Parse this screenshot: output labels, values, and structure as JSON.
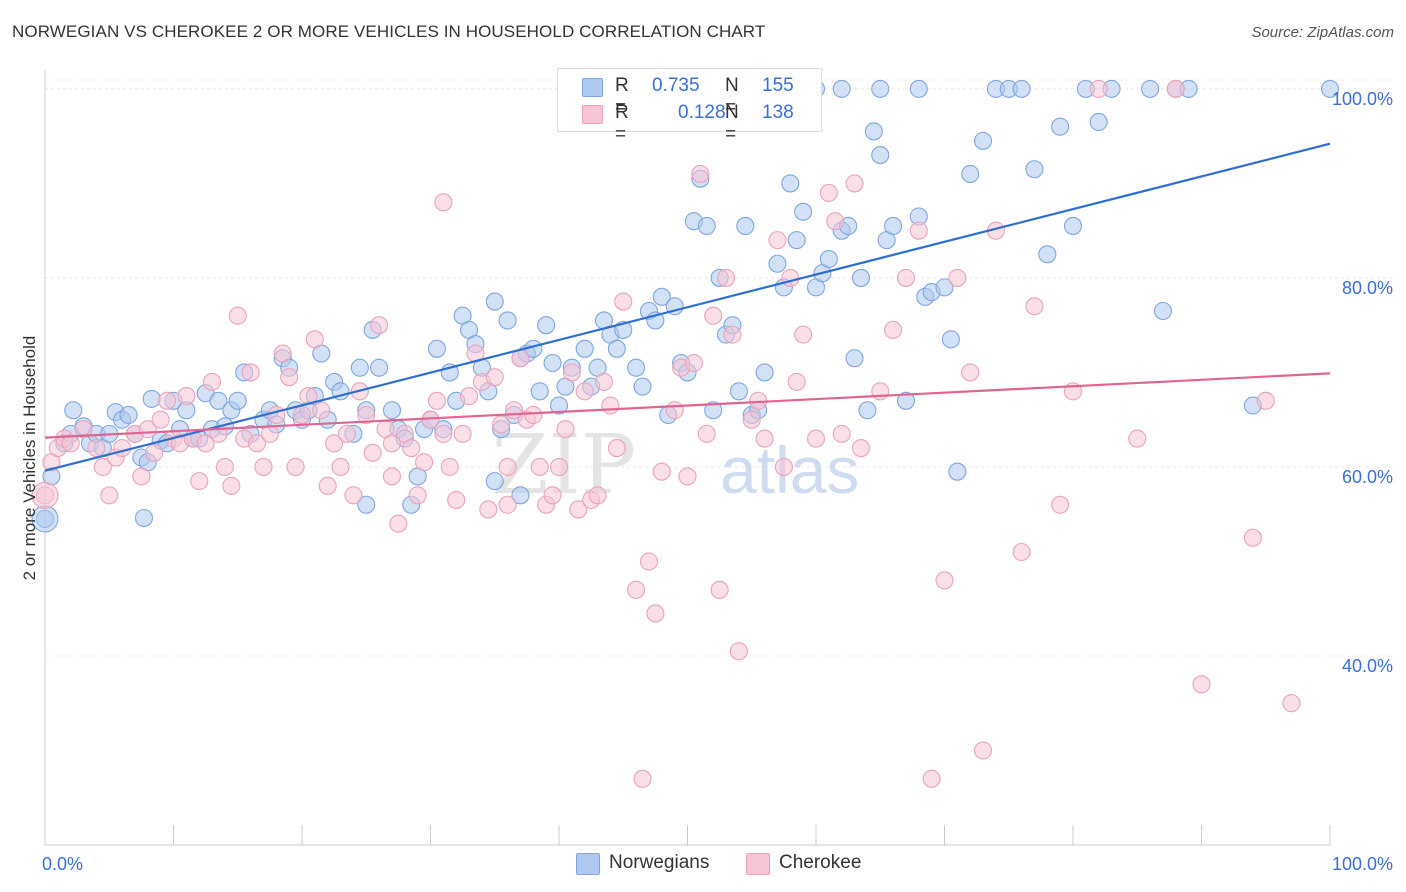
{
  "chart_data": {
    "type": "scatter",
    "title": "NORWEGIAN VS CHEROKEE 2 OR MORE VEHICLES IN HOUSEHOLD CORRELATION CHART",
    "source": "Source: ZipAtlas.com",
    "xlabel": "",
    "ylabel": "2 or more Vehicles in Household",
    "xlim": [
      0,
      100
    ],
    "ylim": [
      20,
      102
    ],
    "x_tick_labels": [
      "0.0%",
      "100.0%"
    ],
    "y_tick_labels": [
      "40.0%",
      "60.0%",
      "80.0%",
      "100.0%"
    ],
    "y_tick_values": [
      40,
      60,
      80,
      100
    ],
    "grid": true,
    "watermark": "ZIPatlas",
    "legend": {
      "placement": "top-center",
      "entries": [
        {
          "series": "Norwegians",
          "r_label": "R =",
          "r_value": "0.735",
          "n_label": "N =",
          "n_value": "155"
        },
        {
          "series": "Cherokee",
          "r_label": "R =",
          "r_value": "0.128",
          "n_label": "N =",
          "n_value": "138"
        }
      ]
    },
    "series": [
      {
        "name": "Norwegians",
        "color": "#7ea6e0",
        "fill": "#aec8f0",
        "line_color": "#2f6fcf",
        "trend": [
          [
            0,
            59.6
          ],
          [
            100,
            94.2
          ]
        ],
        "points": [
          [
            0,
            54.5
          ],
          [
            0.5,
            59
          ],
          [
            1.5,
            62.5
          ],
          [
            2,
            63.5
          ],
          [
            2.2,
            66
          ],
          [
            3,
            64.3
          ],
          [
            3.5,
            62.5
          ],
          [
            4,
            63.5
          ],
          [
            4.5,
            62
          ],
          [
            5,
            63.5
          ],
          [
            5.5,
            65.8
          ],
          [
            6,
            65
          ],
          [
            6.5,
            65.5
          ],
          [
            7,
            63.5
          ],
          [
            7.5,
            61
          ],
          [
            8,
            60.5
          ],
          [
            8.3,
            67.2
          ],
          [
            9,
            62.8
          ],
          [
            9.5,
            62.5
          ],
          [
            10,
            67
          ],
          [
            10.5,
            64
          ],
          [
            11,
            66
          ],
          [
            11.5,
            63
          ],
          [
            12,
            63
          ],
          [
            12.5,
            67.8
          ],
          [
            13,
            64
          ],
          [
            13.5,
            67
          ],
          [
            14,
            64.3
          ],
          [
            14.5,
            66
          ],
          [
            15,
            67
          ],
          [
            15.5,
            70
          ],
          [
            16,
            63.5
          ],
          [
            17,
            65
          ],
          [
            17.5,
            66
          ],
          [
            18,
            64.5
          ],
          [
            18.5,
            71.5
          ],
          [
            19,
            70.5
          ],
          [
            19.5,
            66
          ],
          [
            20,
            65
          ],
          [
            20.5,
            66
          ],
          [
            21,
            67.5
          ],
          [
            21.5,
            72
          ],
          [
            22,
            65
          ],
          [
            22.5,
            69
          ],
          [
            23,
            68
          ],
          [
            24,
            63.5
          ],
          [
            24.5,
            70.5
          ],
          [
            25,
            66
          ],
          [
            25.5,
            74.5
          ],
          [
            26,
            70.5
          ],
          [
            27,
            66
          ],
          [
            27.5,
            64
          ],
          [
            28,
            63
          ],
          [
            28.5,
            56
          ],
          [
            29,
            59
          ],
          [
            29.5,
            64
          ],
          [
            30,
            65
          ],
          [
            30.5,
            72.5
          ],
          [
            31,
            64
          ],
          [
            31.5,
            70
          ],
          [
            32,
            67
          ],
          [
            32.5,
            76
          ],
          [
            33,
            74.5
          ],
          [
            33.5,
            73
          ],
          [
            34,
            70.5
          ],
          [
            34.5,
            68
          ],
          [
            35,
            77.5
          ],
          [
            35.5,
            64
          ],
          [
            36,
            75.5
          ],
          [
            36.5,
            65.5
          ],
          [
            37,
            71.5
          ],
          [
            37.5,
            72
          ],
          [
            38,
            72.5
          ],
          [
            38.5,
            68
          ],
          [
            39,
            75
          ],
          [
            39.5,
            71
          ],
          [
            40,
            66.5
          ],
          [
            40.5,
            68.5
          ],
          [
            41,
            70.5
          ],
          [
            42,
            72.5
          ],
          [
            42.5,
            68.5
          ],
          [
            43,
            70.5
          ],
          [
            43.5,
            75.5
          ],
          [
            44,
            74
          ],
          [
            44.5,
            72.5
          ],
          [
            45,
            74.5
          ],
          [
            46,
            70.5
          ],
          [
            46.5,
            68.5
          ],
          [
            47,
            76.5
          ],
          [
            47.5,
            75.5
          ],
          [
            48,
            78
          ],
          [
            48.5,
            65.5
          ],
          [
            49,
            77
          ],
          [
            49.5,
            71
          ],
          [
            50,
            70
          ],
          [
            50.5,
            86
          ],
          [
            51,
            90.5
          ],
          [
            51.5,
            85.5
          ],
          [
            52,
            66
          ],
          [
            52.5,
            80
          ],
          [
            53,
            74
          ],
          [
            53.5,
            75
          ],
          [
            54,
            68
          ],
          [
            54.5,
            85.5
          ],
          [
            55,
            65.5
          ],
          [
            55.5,
            66
          ],
          [
            56,
            70
          ],
          [
            57,
            81.5
          ],
          [
            57.5,
            79
          ],
          [
            58,
            90
          ],
          [
            58.5,
            84
          ],
          [
            59,
            87
          ],
          [
            60,
            79
          ],
          [
            60.5,
            80.5
          ],
          [
            61,
            82
          ],
          [
            62,
            85
          ],
          [
            62.5,
            85.5
          ],
          [
            63,
            71.5
          ],
          [
            63.5,
            80
          ],
          [
            64,
            66
          ],
          [
            64.5,
            95.5
          ],
          [
            65,
            93
          ],
          [
            65.5,
            84
          ],
          [
            66,
            85.5
          ],
          [
            67,
            67
          ],
          [
            68,
            86.5
          ],
          [
            68.5,
            78
          ],
          [
            69,
            78.5
          ],
          [
            70,
            79
          ],
          [
            70.5,
            73.5
          ],
          [
            71,
            59.5
          ],
          [
            72,
            91
          ],
          [
            73,
            94.5
          ],
          [
            74,
            100
          ],
          [
            75,
            100
          ],
          [
            76,
            100
          ],
          [
            77,
            91.5
          ],
          [
            78,
            82.5
          ],
          [
            79,
            96
          ],
          [
            80,
            85.5
          ],
          [
            81,
            100
          ],
          [
            82,
            96.5
          ],
          [
            83,
            100
          ],
          [
            86,
            100
          ],
          [
            87,
            76.5
          ],
          [
            88,
            100
          ],
          [
            89,
            100
          ],
          [
            94,
            66.5
          ],
          [
            100,
            100
          ],
          [
            60,
            100
          ],
          [
            62,
            100
          ],
          [
            65,
            100
          ],
          [
            68,
            100
          ],
          [
            35,
            58.5
          ],
          [
            37,
            57
          ],
          [
            7.7,
            54.6
          ],
          [
            25,
            56
          ]
        ]
      },
      {
        "name": "Cherokee",
        "color": "#eaa3ba",
        "fill": "#f7c5d4",
        "line_color": "#e06590",
        "trend": [
          [
            0,
            63.1
          ],
          [
            100,
            69.9
          ]
        ],
        "points": [
          [
            0,
            57
          ],
          [
            0.5,
            60.5
          ],
          [
            1,
            62
          ],
          [
            1.5,
            63
          ],
          [
            2,
            62.5
          ],
          [
            3,
            64
          ],
          [
            4,
            62
          ],
          [
            4.5,
            60
          ],
          [
            5,
            57
          ],
          [
            5.5,
            61
          ],
          [
            6,
            62
          ],
          [
            7,
            63.5
          ],
          [
            7.5,
            59
          ],
          [
            8,
            64
          ],
          [
            8.5,
            61.5
          ],
          [
            9,
            65
          ],
          [
            9.5,
            67
          ],
          [
            10,
            63
          ],
          [
            10.5,
            62.5
          ],
          [
            11,
            67.5
          ],
          [
            11.5,
            63
          ],
          [
            12,
            58.5
          ],
          [
            12.5,
            62.5
          ],
          [
            13,
            69
          ],
          [
            13.5,
            63.5
          ],
          [
            14,
            60
          ],
          [
            14.5,
            58
          ],
          [
            15,
            76
          ],
          [
            15.5,
            63
          ],
          [
            16,
            70
          ],
          [
            16.5,
            62.5
          ],
          [
            17,
            60
          ],
          [
            17.5,
            63.5
          ],
          [
            18,
            65.5
          ],
          [
            18.5,
            72
          ],
          [
            19,
            69.5
          ],
          [
            19.5,
            60
          ],
          [
            20,
            65.5
          ],
          [
            20.5,
            67.5
          ],
          [
            21,
            73.5
          ],
          [
            21.5,
            66
          ],
          [
            22,
            58
          ],
          [
            22.5,
            62.5
          ],
          [
            23,
            60
          ],
          [
            23.5,
            63.5
          ],
          [
            24,
            57
          ],
          [
            24.5,
            68
          ],
          [
            25,
            65.5
          ],
          [
            25.5,
            61.5
          ],
          [
            26,
            75
          ],
          [
            26.5,
            64
          ],
          [
            27,
            59
          ],
          [
            27.5,
            54
          ],
          [
            28,
            63.5
          ],
          [
            28.5,
            62
          ],
          [
            29,
            57
          ],
          [
            29.5,
            60.5
          ],
          [
            30,
            65
          ],
          [
            30.5,
            67
          ],
          [
            31,
            63.5
          ],
          [
            31.5,
            60
          ],
          [
            32,
            56.5
          ],
          [
            32.5,
            63.5
          ],
          [
            33,
            67.5
          ],
          [
            33.5,
            72
          ],
          [
            34,
            69
          ],
          [
            34.5,
            55.5
          ],
          [
            35,
            69.5
          ],
          [
            35.5,
            64.5
          ],
          [
            36,
            60
          ],
          [
            36.5,
            66
          ],
          [
            37,
            71.5
          ],
          [
            37.5,
            65
          ],
          [
            38,
            65.5
          ],
          [
            38.5,
            60
          ],
          [
            39,
            56
          ],
          [
            39.5,
            57
          ],
          [
            40,
            60
          ],
          [
            40.5,
            64
          ],
          [
            41,
            70
          ],
          [
            41.5,
            55.5
          ],
          [
            42,
            68
          ],
          [
            42.5,
            56.5
          ],
          [
            43,
            57
          ],
          [
            43.5,
            69
          ],
          [
            44,
            66.5
          ],
          [
            44.5,
            62
          ],
          [
            45,
            77.5
          ],
          [
            46,
            47
          ],
          [
            46.5,
            27
          ],
          [
            47,
            50
          ],
          [
            47.5,
            44.5
          ],
          [
            48,
            59.5
          ],
          [
            49,
            66
          ],
          [
            49.5,
            70.5
          ],
          [
            50,
            59
          ],
          [
            50.5,
            71
          ],
          [
            51,
            91
          ],
          [
            51.5,
            63.5
          ],
          [
            52,
            76
          ],
          [
            52.5,
            47
          ],
          [
            53,
            80
          ],
          [
            53.5,
            74
          ],
          [
            54,
            40.5
          ],
          [
            55,
            65
          ],
          [
            55.5,
            67
          ],
          [
            56,
            63
          ],
          [
            57,
            84
          ],
          [
            57.5,
            60
          ],
          [
            58,
            80
          ],
          [
            58.5,
            69
          ],
          [
            59,
            74
          ],
          [
            60,
            63
          ],
          [
            61,
            89
          ],
          [
            61.5,
            86
          ],
          [
            62,
            63.5
          ],
          [
            63,
            90
          ],
          [
            63.5,
            62
          ],
          [
            65,
            68
          ],
          [
            66,
            74.5
          ],
          [
            67,
            80
          ],
          [
            68,
            85
          ],
          [
            69,
            27
          ],
          [
            70,
            48
          ],
          [
            71,
            80
          ],
          [
            72,
            70
          ],
          [
            73,
            30
          ],
          [
            74,
            85
          ],
          [
            76,
            51
          ],
          [
            77,
            77
          ],
          [
            79,
            56
          ],
          [
            80,
            68
          ],
          [
            82,
            100
          ],
          [
            85,
            63
          ],
          [
            88,
            100
          ],
          [
            90,
            37
          ],
          [
            94,
            52.5
          ],
          [
            95,
            67
          ],
          [
            97,
            35
          ],
          [
            27,
            62.5
          ],
          [
            31,
            88
          ],
          [
            36,
            56
          ]
        ]
      }
    ]
  }
}
